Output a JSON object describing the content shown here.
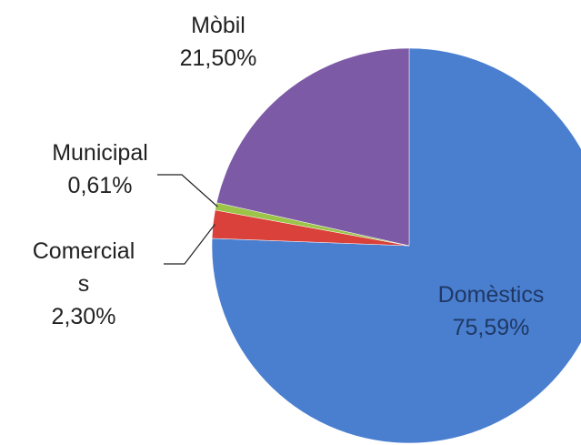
{
  "chart_data": {
    "type": "pie",
    "categories": [
      "Domèstics",
      "Comercials",
      "Municipal",
      "Mòbil"
    ],
    "values": [
      75.59,
      2.3,
      0.61,
      21.5
    ],
    "value_labels": [
      "75,59%",
      "2,30%",
      "0,61%",
      "21,50%"
    ],
    "colors": [
      "#4a7fd0",
      "#d9413a",
      "#9bc448",
      "#7d5aa6"
    ]
  }
}
